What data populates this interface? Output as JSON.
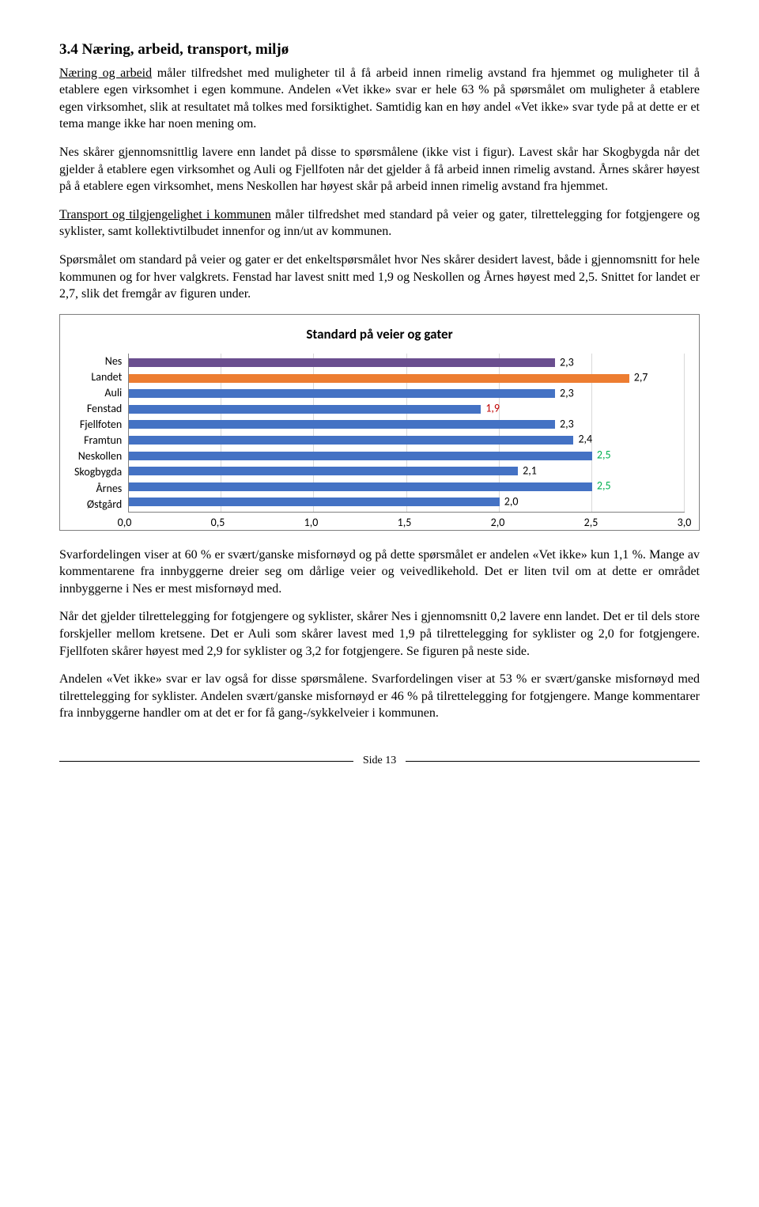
{
  "heading": "3.4  Næring, arbeid, transport, miljø",
  "paragraphs": {
    "p1_u": "Næring og arbeid",
    "p1": " måler tilfredshet med muligheter til å få arbeid innen rimelig avstand fra hjemmet og muligheter til å etablere egen virksomhet i egen kommune. Andelen «Vet ikke» svar er hele 63 % på spørsmålet om muligheter å etablere egen virksomhet, slik at resultatet må tolkes med forsiktighet. Samtidig kan en høy andel «Vet ikke» svar tyde på at dette er et tema mange ikke har noen mening om.",
    "p2": "Nes skårer gjennomsnittlig lavere enn landet på disse to spørsmålene (ikke vist i figur). Lavest skår har Skogbygda når det gjelder å etablere egen virksomhet og Auli og Fjellfoten når det gjelder å få arbeid innen rimelig avstand. Årnes skårer høyest på å etablere egen virksomhet, mens Neskollen har høyest skår på arbeid innen rimelig avstand fra hjemmet.",
    "p3_u": "Transport og tilgjengelighet i kommunen",
    "p3": " måler tilfredshet med standard på veier og gater, tilrettelegging for fotgjengere og syklister, samt kollektivtilbudet innenfor og inn/ut av kommunen.",
    "p4": "Spørsmålet om standard på veier og gater er det enkeltspørsmålet hvor Nes skårer desidert lavest, både i gjennomsnitt for hele kommunen og for hver valgkrets. Fenstad har lavest snitt med 1,9 og Neskollen og Årnes høyest med 2,5. Snittet for landet er 2,7, slik det fremgår av figuren under.",
    "p5": "Svarfordelingen viser at 60 % er svært/ganske misfornøyd og på dette spørsmålet er andelen «Vet ikke» kun 1,1 %. Mange av kommentarene fra innbyggerne dreier seg om dårlige veier og veivedlikehold. Det er liten tvil om at dette er området innbyggerne i Nes er mest misfornøyd med.",
    "p6": "Når det gjelder tilrettelegging for fotgjengere og syklister, skårer Nes i gjennomsnitt 0,2 lavere enn landet. Det er til dels store forskjeller mellom kretsene. Det er Auli som skårer lavest med 1,9 på tilrettelegging for syklister og 2,0 for fotgjengere. Fjellfoten skårer høyest med 2,9 for syklister og 3,2 for fotgjengere. Se figuren på neste side.",
    "p7": "Andelen «Vet ikke» svar er lav også for disse spørsmålene. Svarfordelingen viser at 53 % er svært/ganske misfornøyd med tilrettelegging for syklister. Andelen svært/ganske misfornøyd er 46 % på tilrettelegging for fotgjengere. Mange kommentarer fra innbyggerne handler om at det er for få gang-/sykkelveier i kommunen."
  },
  "chart": {
    "type": "bar-horizontal",
    "title": "Standard på veier og gater",
    "x_min": 0.0,
    "x_max": 3.0,
    "x_ticks": [
      "0,0",
      "0,5",
      "1,0",
      "1,5",
      "2,0",
      "2,5",
      "3,0"
    ],
    "bars": [
      {
        "label": "Nes",
        "value": 2.3,
        "value_label": "2,3",
        "fill": "#6a4e8f",
        "text_color": "#000000"
      },
      {
        "label": "Landet",
        "value": 2.7,
        "value_label": "2,7",
        "fill": "#ed7d31",
        "text_color": "#000000"
      },
      {
        "label": "Auli",
        "value": 2.3,
        "value_label": "2,3",
        "fill": "#4472c4",
        "text_color": "#000000"
      },
      {
        "label": "Fenstad",
        "value": 1.9,
        "value_label": "1,9",
        "fill": "#4472c4",
        "text_color": "#c00000"
      },
      {
        "label": "Fjellfoten",
        "value": 2.3,
        "value_label": "2,3",
        "fill": "#4472c4",
        "text_color": "#000000"
      },
      {
        "label": "Framtun",
        "value": 2.4,
        "value_label": "2,4",
        "fill": "#4472c4",
        "text_color": "#000000"
      },
      {
        "label": "Neskollen",
        "value": 2.5,
        "value_label": "2,5",
        "fill": "#4472c4",
        "text_color": "#00b050"
      },
      {
        "label": "Skogbygda",
        "value": 2.1,
        "value_label": "2,1",
        "fill": "#4472c4",
        "text_color": "#000000"
      },
      {
        "label": "Årnes",
        "value": 2.5,
        "value_label": "2,5",
        "fill": "#4472c4",
        "text_color": "#00b050"
      },
      {
        "label": "Østgård",
        "value": 2.0,
        "value_label": "2,0",
        "fill": "#4472c4",
        "text_color": "#000000"
      }
    ],
    "grid_color": "#d9d9d9",
    "axis_color": "#808080",
    "background": "#ffffff"
  },
  "footer": "Side 13"
}
